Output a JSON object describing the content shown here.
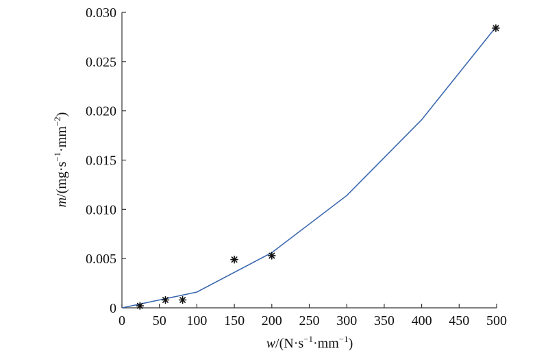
{
  "chart_data": {
    "type": "line",
    "title": "",
    "xlabel": {
      "italic": "w",
      "prefix": "/(N·s",
      "sup1": "−1",
      "mid": "·mm",
      "sup2": "−1",
      "suffix": ")"
    },
    "ylabel": {
      "italic": "m",
      "prefix": "/(mg·s",
      "sup1": "−1",
      "mid": "·mm",
      "sup2": "−2",
      "suffix": ")"
    },
    "xlim": [
      0,
      500
    ],
    "ylim": [
      0,
      0.03
    ],
    "x_ticks": [
      0,
      50,
      100,
      150,
      200,
      250,
      300,
      350,
      400,
      450,
      500
    ],
    "x_tick_labels": [
      "0",
      "50",
      "100",
      "150",
      "200",
      "250",
      "300",
      "350",
      "400",
      "450",
      "500"
    ],
    "y_ticks": [
      0,
      0.005,
      0.01,
      0.015,
      0.02,
      0.025,
      0.03
    ],
    "y_tick_labels": [
      "0",
      "0.005",
      "0.010",
      "0.015",
      "0.020",
      "0.025",
      "0.030"
    ],
    "grid": false,
    "series": [
      {
        "kind": "line",
        "color": "#3a67b0",
        "x": [
          0,
          100,
          200,
          300,
          400,
          500
        ],
        "y": [
          0,
          0.0016,
          0.0056,
          0.0114,
          0.0191,
          0.0286
        ]
      },
      {
        "kind": "scatter",
        "marker": "asterisk",
        "color": "#111111",
        "x": [
          24,
          58,
          81,
          150,
          200,
          499
        ],
        "y": [
          0.0002,
          0.0008,
          0.0008,
          0.0049,
          0.0053,
          0.0284
        ]
      }
    ]
  }
}
